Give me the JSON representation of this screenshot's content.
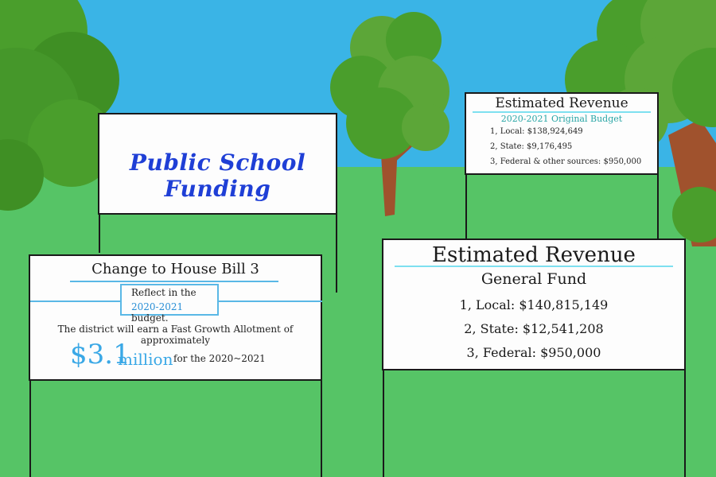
{
  "title_sign": {
    "text": "Public School Funding"
  },
  "revenue_small": {
    "heading": "Estimated Revenue",
    "subheading": "2020-2021 Original Budget",
    "items": [
      "1, Local: $138,924,649",
      "2, State: $9,176,495",
      "3, Federal & other sources: $950,000"
    ]
  },
  "house_bill": {
    "heading": "Change to House Bill 3",
    "box_line1": "Reflect in the",
    "box_year": "2020-2021",
    "box_suffix": " budget.",
    "paragraph": "The district will earn a Fast Growth Allotment of approximately",
    "amount": "$3.1",
    "amount_unit": "million",
    "tail": "for the 2020~2021"
  },
  "general_fund": {
    "heading": "Estimated Revenue",
    "subheading": "General Fund",
    "items": [
      "1, Local: $140,815,149",
      "2, State: $12,541,208",
      "3, Federal: $950,000"
    ]
  },
  "colors": {
    "sky": "#3ab4e6",
    "grass": "#56c466",
    "tree_green": "#4a9e2c",
    "trunk": "#a0522d",
    "title_blue": "#1f3fd6",
    "accent_blue": "#3aa8e6"
  }
}
